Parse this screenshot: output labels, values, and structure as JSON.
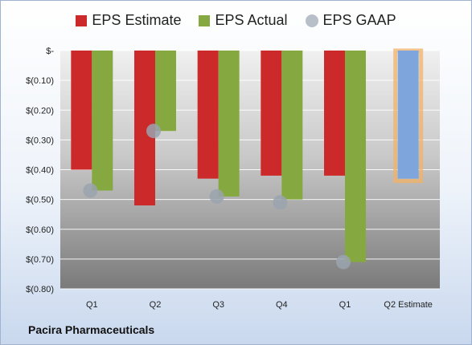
{
  "footer": {
    "company": "Pacira Pharmaceuticals"
  },
  "chart_data": {
    "type": "bar",
    "categories": [
      "Q1",
      "Q2",
      "Q3",
      "Q4",
      "Q1",
      "Q2 Estimate"
    ],
    "y_tick_labels": [
      "$-",
      "$(0.10)",
      "$(0.20)",
      "$(0.30)",
      "$(0.40)",
      "$(0.50)",
      "$(0.60)",
      "$(0.70)",
      "$(0.80)"
    ],
    "ylim": [
      -0.8,
      0
    ],
    "grid": true,
    "legend_position": "top",
    "series": [
      {
        "name": "EPS Estimate",
        "kind": "bar",
        "color": "#cc2a2a",
        "values": [
          -0.4,
          -0.52,
          -0.43,
          -0.42,
          -0.42,
          null
        ]
      },
      {
        "name": "EPS Actual",
        "kind": "bar",
        "color": "#86a840",
        "values": [
          -0.47,
          -0.27,
          -0.49,
          -0.5,
          -0.71,
          null
        ]
      },
      {
        "name": "EPS GAAP",
        "kind": "marker",
        "color": "#9aa3ae",
        "values": [
          -0.47,
          -0.27,
          -0.49,
          -0.51,
          -0.71,
          null
        ]
      }
    ],
    "forecast": {
      "category_index": 5,
      "value": -0.43,
      "color": "#7ea6dd",
      "outline_color": "#f2b266"
    }
  }
}
